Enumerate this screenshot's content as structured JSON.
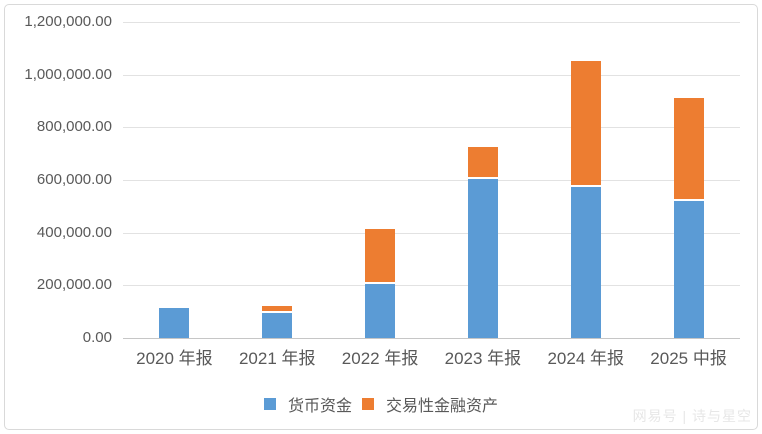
{
  "chart_data": {
    "type": "bar",
    "stacked": true,
    "title": "",
    "xlabel": "",
    "ylabel": "",
    "categories": [
      "2020 年报",
      "2021 年报",
      "2022 年报",
      "2023 年报",
      "2024 年报",
      "2025 中报"
    ],
    "series": [
      {
        "name": "货币资金",
        "color": "#5B9BD5",
        "values": [
          115000,
          95000,
          205000,
          605000,
          575000,
          520000
        ]
      },
      {
        "name": "交易性金融资产",
        "color": "#ED7D31",
        "values": [
          0,
          28000,
          210000,
          120000,
          478000,
          392000
        ]
      }
    ],
    "ylim": [
      0,
      1200000
    ],
    "y_tick_step": 200000,
    "y_tick_labels": [
      "0.00",
      "200,000.00",
      "400,000.00",
      "600,000.00",
      "800,000.00",
      "1,000,000.00",
      "1,200,000.00"
    ],
    "grid": true,
    "legend_position": "bottom"
  },
  "watermark": "网易号 | 诗与星空",
  "colors": {
    "bar_blue": "#5B9BD5",
    "bar_orange": "#ED7D31",
    "gridline": "#e2e2e2",
    "axis_line": "#c6c6c6",
    "text": "#595959",
    "frame_border": "#d9d9d9",
    "watermark": "#e7e7e7"
  }
}
